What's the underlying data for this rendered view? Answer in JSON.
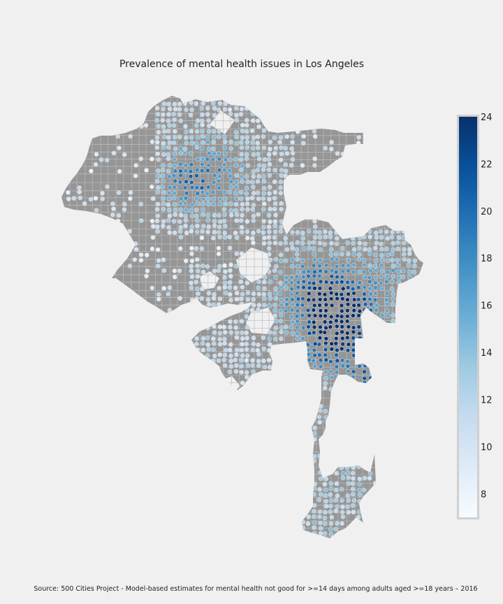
{
  "title": "Prevalence of mental health issues in Los Angeles",
  "source": "Source: 500 Cities Project - Model-based estimates for mental health not good for >=14 days among adults aged >=18 years – 2016",
  "colorbar": {
    "min": 7,
    "max": 24,
    "ticks": [
      8,
      10,
      12,
      14,
      16,
      18,
      20,
      22,
      24
    ],
    "colormap": "Blues",
    "stops": [
      "#f7fbff",
      "#deebf7",
      "#c6dbef",
      "#9ecae1",
      "#6baed6",
      "#4292c6",
      "#2171b5",
      "#08519c",
      "#08306b"
    ]
  },
  "colors": {
    "background": "#f0f0f0",
    "land": "#969696",
    "tract_border": "#bdbdbd"
  }
}
